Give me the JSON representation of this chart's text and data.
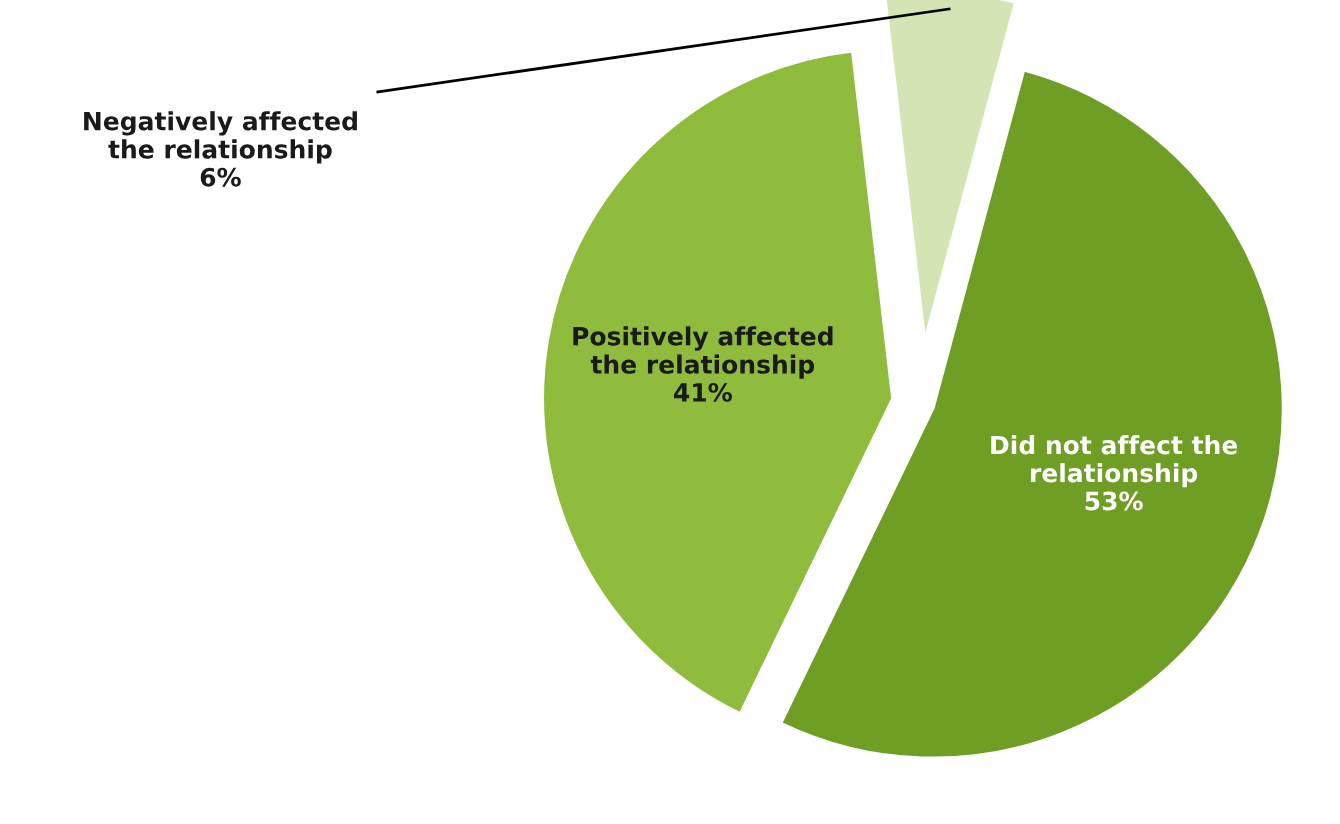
{
  "chart_data": {
    "type": "pie",
    "categories": [
      "Did not affect the\nrelationship",
      "Positively affected\nthe relationship",
      "Negatively affected\nthe relationship"
    ],
    "values": [
      53,
      41,
      6
    ],
    "colors": [
      "#6f9e24",
      "#8fbc3c",
      "#d5e4b4"
    ],
    "value_labels": [
      "53%",
      "41%",
      "6%"
    ],
    "legend": false
  }
}
